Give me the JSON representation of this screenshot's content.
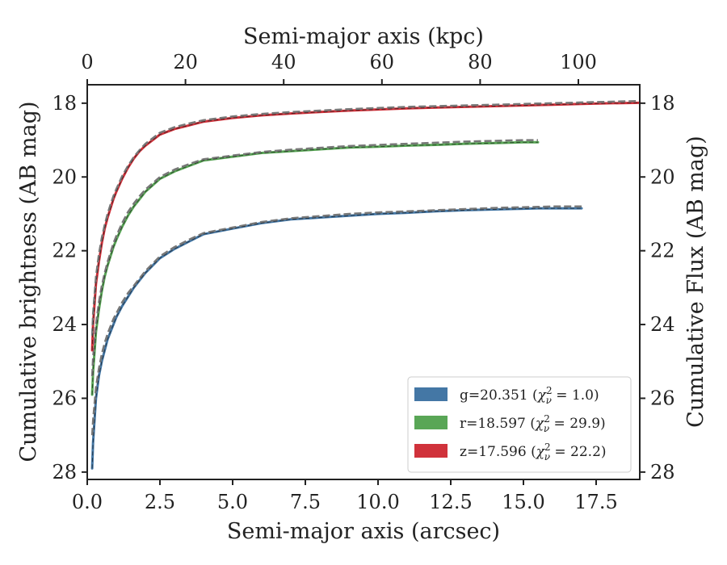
{
  "chart_data": {
    "type": "line",
    "x": [
      0.17,
      0.2,
      0.3,
      0.4,
      0.5,
      0.6,
      0.7,
      0.8,
      0.9,
      1.0,
      1.2,
      1.4,
      1.6,
      1.8,
      2.0,
      2.5,
      3.0,
      3.5,
      4.0,
      5.0,
      6.0,
      7.0,
      8.0,
      9.0,
      10.0,
      11.0,
      12.0,
      13.0,
      14.0,
      15.0,
      15.5,
      16.0,
      17.0,
      18.0,
      19.0
    ],
    "series": [
      {
        "name": "g=20.351 (χ²ν = 1.0)",
        "band": "g",
        "color": "#4477a5",
        "x_max": 17.2,
        "values": [
          27.9,
          27.2,
          26.0,
          25.4,
          25.0,
          24.7,
          24.4,
          24.2,
          24.0,
          23.8,
          23.5,
          23.25,
          23.0,
          22.8,
          22.6,
          22.2,
          21.95,
          21.75,
          21.55,
          21.4,
          21.25,
          21.15,
          21.1,
          21.05,
          21.0,
          20.97,
          20.93,
          20.9,
          20.88,
          20.86,
          20.85,
          20.85,
          20.85,
          20.85,
          20.85
        ],
        "model_values": [
          27.0,
          26.6,
          25.7,
          25.2,
          24.8,
          24.5,
          24.25,
          24.05,
          23.85,
          23.7,
          23.4,
          23.15,
          22.95,
          22.75,
          22.55,
          22.15,
          21.9,
          21.7,
          21.52,
          21.37,
          21.22,
          21.12,
          21.06,
          21.0,
          20.96,
          20.93,
          20.9,
          20.87,
          20.84,
          20.82,
          20.81,
          20.8,
          20.8,
          20.8,
          20.8
        ]
      },
      {
        "name": "r=18.597 (χ²ν = 29.9)",
        "band": "r",
        "color": "#59a656",
        "x_max": 15.6,
        "values": [
          25.9,
          25.3,
          24.2,
          23.6,
          23.1,
          22.7,
          22.4,
          22.15,
          21.9,
          21.7,
          21.35,
          21.05,
          20.8,
          20.6,
          20.4,
          20.05,
          19.85,
          19.7,
          19.55,
          19.45,
          19.35,
          19.3,
          19.25,
          19.2,
          19.18,
          19.15,
          19.13,
          19.1,
          19.08,
          19.06,
          19.06,
          19.06,
          19.06,
          19.06,
          19.06
        ],
        "model_values": [
          25.4,
          24.9,
          24.0,
          23.4,
          22.95,
          22.6,
          22.3,
          22.05,
          21.8,
          21.6,
          21.25,
          20.95,
          20.72,
          20.52,
          20.34,
          20.0,
          19.8,
          19.65,
          19.52,
          19.42,
          19.32,
          19.26,
          19.21,
          19.16,
          19.13,
          19.1,
          19.07,
          19.04,
          19.02,
          19.0,
          19.0,
          19.0,
          19.0,
          19.0,
          19.0
        ]
      },
      {
        "name": "z=17.596 (χ²ν = 22.2)",
        "band": "z",
        "color": "#d0323b",
        "x_max": 19.0,
        "values": [
          24.7,
          24.0,
          22.9,
          22.3,
          21.8,
          21.4,
          21.1,
          20.85,
          20.6,
          20.4,
          20.05,
          19.75,
          19.5,
          19.3,
          19.15,
          18.85,
          18.7,
          18.6,
          18.5,
          18.4,
          18.33,
          18.28,
          18.24,
          18.2,
          18.17,
          18.14,
          18.12,
          18.1,
          18.08,
          18.06,
          18.05,
          18.04,
          18.02,
          18.0,
          17.99
        ],
        "model_values": [
          24.3,
          23.7,
          22.7,
          22.1,
          21.65,
          21.3,
          21.0,
          20.75,
          20.52,
          20.33,
          19.98,
          19.7,
          19.46,
          19.27,
          19.1,
          18.8,
          18.65,
          18.55,
          18.46,
          18.36,
          18.29,
          18.24,
          18.2,
          18.16,
          18.13,
          18.1,
          18.08,
          18.06,
          18.04,
          18.02,
          18.01,
          18.0,
          17.98,
          17.96,
          17.94
        ]
      }
    ],
    "xlabel": "Semi-major axis (arcsec)",
    "ylabel": "Cumulative brightness (AB mag)",
    "top_xlabel": "Semi-major axis (kpc)",
    "right_ylabel": "Cumulative Flux (AB mag)",
    "xlim": [
      0.0,
      19.0
    ],
    "ylim": [
      28.2,
      17.5
    ],
    "y_inverted": true,
    "xticks": [
      0.0,
      2.5,
      5.0,
      7.5,
      10.0,
      12.5,
      15.0,
      17.5
    ],
    "xtick_labels": [
      "0.0",
      "2.5",
      "5.0",
      "7.5",
      "10.0",
      "12.5",
      "15.0",
      "17.5"
    ],
    "yticks": [
      18,
      20,
      22,
      24,
      26,
      28
    ],
    "ytick_labels": [
      "18",
      "20",
      "22",
      "24",
      "26",
      "28"
    ],
    "top_xlim": [
      0,
      112.5
    ],
    "top_xticks": [
      0,
      20,
      40,
      60,
      80,
      100
    ],
    "top_xtick_labels": [
      "0",
      "20",
      "40",
      "60",
      "80",
      "100"
    ],
    "model_line_color": "#777777",
    "grid": false,
    "legend_position": "lower-right"
  },
  "legend": {
    "items": [
      {
        "prefix": "g=20.351 (",
        "chi": "χ",
        "sup": "2",
        "sub": "ν",
        "suffix": " = 1.0)",
        "color": "#4477a5"
      },
      {
        "prefix": "r=18.597 (",
        "chi": "χ",
        "sup": "2",
        "sub": "ν",
        "suffix": " = 29.9)",
        "color": "#59a656"
      },
      {
        "prefix": "z=17.596 (",
        "chi": "χ",
        "sup": "2",
        "sub": "ν",
        "suffix": " = 22.2)",
        "color": "#d0323b"
      }
    ]
  }
}
